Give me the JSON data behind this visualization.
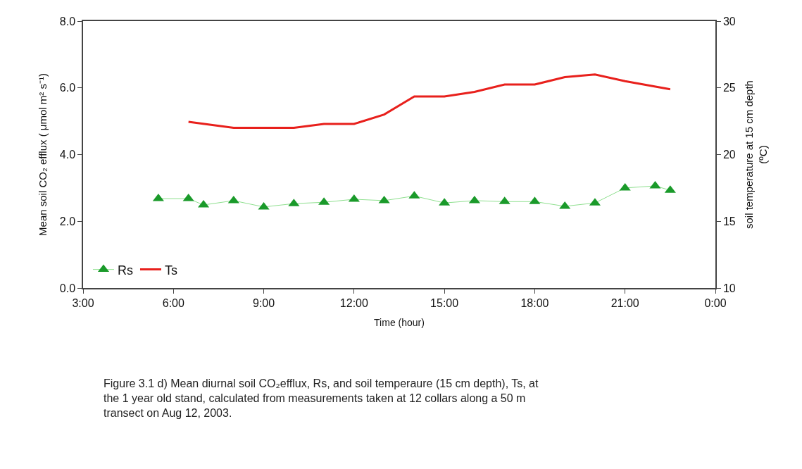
{
  "chart_data": {
    "type": "line",
    "xlabel": "Time (hour)",
    "ylabel": "Mean soil CO₂ efflux ( μmol m² s⁻¹)",
    "y2label": "soil temperature at 15 cm depth\n(ºC)",
    "xlim": [
      3,
      24
    ],
    "xticks": [
      {
        "value": 3,
        "label": "3:00"
      },
      {
        "value": 6,
        "label": "6:00"
      },
      {
        "value": 9,
        "label": "9:00"
      },
      {
        "value": 12,
        "label": "12:00"
      },
      {
        "value": 15,
        "label": "15:00"
      },
      {
        "value": 18,
        "label": "18:00"
      },
      {
        "value": 21,
        "label": "21:00"
      },
      {
        "value": 24,
        "label": "0:00"
      }
    ],
    "ylim": [
      0,
      8
    ],
    "yticks": [
      {
        "value": 0,
        "label": "0.0"
      },
      {
        "value": 2,
        "label": "2.0"
      },
      {
        "value": 4,
        "label": "4.0"
      },
      {
        "value": 6,
        "label": "6.0"
      },
      {
        "value": 8,
        "label": "8.0"
      }
    ],
    "y2lim": [
      10,
      30
    ],
    "y2ticks": [
      10,
      15,
      20,
      25,
      30
    ],
    "grid": false,
    "legend": "bottom left",
    "series": [
      {
        "name": "Rs",
        "color": "#1a9a2a",
        "marker": "triangle",
        "x": [
          5.5,
          6.5,
          7,
          8,
          9,
          10,
          11,
          12,
          13,
          14,
          15,
          16,
          17,
          18,
          19,
          20,
          21,
          22,
          22.5
        ],
        "values": [
          2.68,
          2.68,
          2.49,
          2.62,
          2.43,
          2.53,
          2.57,
          2.66,
          2.62,
          2.76,
          2.55,
          2.62,
          2.59,
          2.59,
          2.45,
          2.55,
          3.0,
          3.06,
          2.93
        ]
      },
      {
        "name": "Ts",
        "color": "#e8201c",
        "marker": "none",
        "axis": "y2",
        "x": [
          6.5,
          8,
          9,
          10,
          11,
          12,
          13,
          14,
          15,
          16,
          17,
          18,
          19,
          20,
          21,
          22.5
        ],
        "values": [
          22.45,
          22.0,
          22.0,
          22.0,
          22.3,
          22.3,
          23.0,
          24.35,
          24.35,
          24.7,
          25.25,
          25.25,
          25.8,
          26.0,
          25.5,
          24.9
        ]
      }
    ],
    "annotations": [
      "Figure 3.1 d) Mean diurnal soil CO₂efflux, Rs, and soil temperaure (15 cm depth), Ts, at\nthe 1 year old stand, calculated from measurements taken at 12 collars along a 50 m\ntransect on Aug 12, 2003."
    ]
  }
}
